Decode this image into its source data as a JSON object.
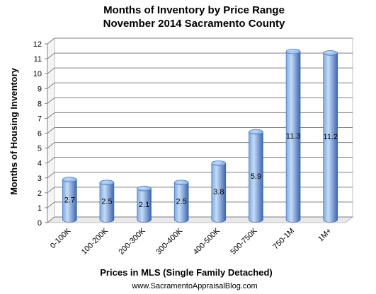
{
  "chart_data": {
    "type": "bar",
    "title": "Months of Inventory by Price Range",
    "subtitle": "November 2014 Sacramento County",
    "xlabel": "Prices in MLS (Single Family Detached)",
    "ylabel": "Months of Housing Inventory",
    "categories": [
      "0-100K",
      "100-200K",
      "200-300K",
      "300-400K",
      "400-500K",
      "500-750K",
      "750-1M",
      "1M+"
    ],
    "values": [
      2.7,
      2.5,
      2.1,
      2.5,
      3.8,
      5.9,
      11.3,
      11.2
    ],
    "data_labels": [
      "2.7",
      "2.5",
      "2.1",
      "2.5",
      "3.8",
      "5.9",
      "11.3",
      "11.2"
    ],
    "ylim": [
      0,
      12
    ],
    "yticks": [
      "0",
      "1",
      "2",
      "3",
      "4",
      "5",
      "6",
      "7",
      "8",
      "9",
      "10",
      "11",
      "12"
    ],
    "grid": true,
    "legend": "none",
    "bar_style": "3d-cylinder",
    "colors": {
      "bar_light": "#c6dcf5",
      "bar_mid": "#7aa7e0",
      "bar_dark": "#3a66b4",
      "gridline": "#7f7f7f",
      "wall": "#ffffff"
    },
    "credit": "www.SacramentoAppraisalBlog.com"
  }
}
